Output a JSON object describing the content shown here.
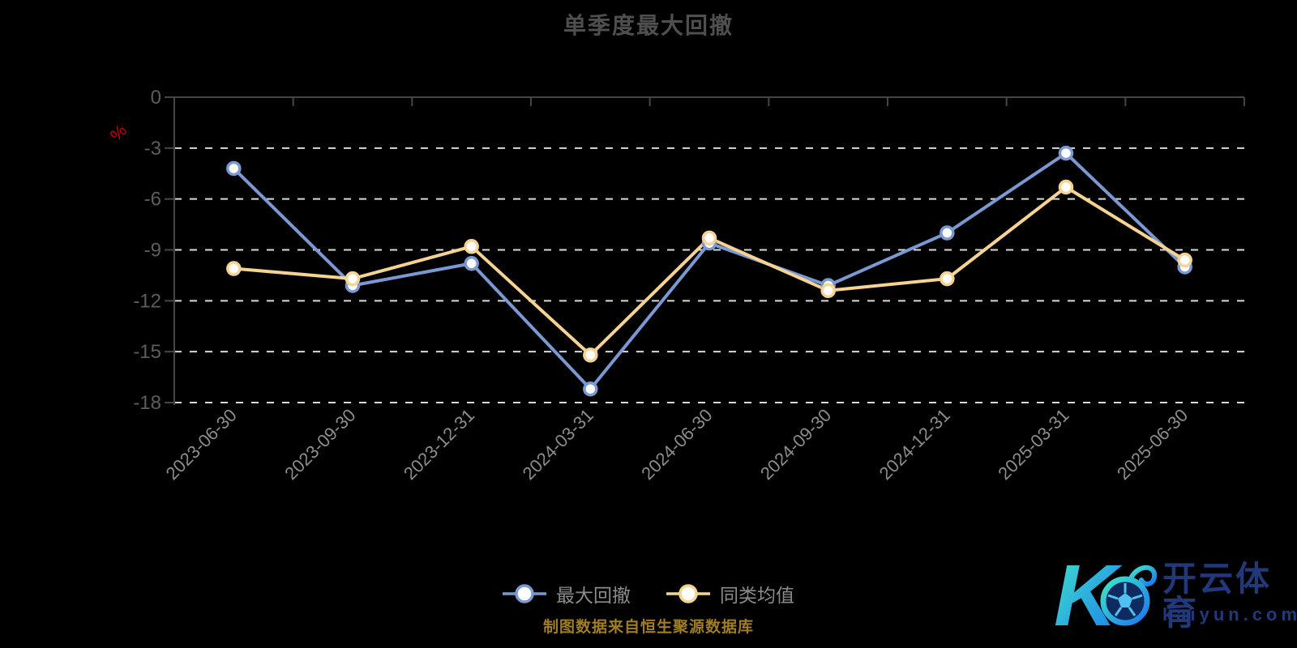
{
  "title": "单季度最大回撤",
  "source_note": "制图数据来自恒生聚源数据库",
  "y_axis": {
    "unit_label": "%",
    "ticks": [
      0,
      -3,
      -6,
      -9,
      -12,
      -15,
      -18
    ],
    "min": -18,
    "max": 0
  },
  "legend": [
    {
      "name": "最大回撤",
      "color": "#7a98d2"
    },
    {
      "name": "同类均值",
      "color": "#f7d393"
    }
  ],
  "chart_data": {
    "type": "line",
    "title": "单季度最大回撤",
    "categories": [
      "2023-06-30",
      "2023-09-30",
      "2023-12-31",
      "2024-03-31",
      "2024-06-30",
      "2024-09-30",
      "2024-12-31",
      "2025-03-31",
      "2025-06-30"
    ],
    "series": [
      {
        "name": "最大回撤",
        "color": "#7a98d2",
        "values": [
          -4.2,
          -11.1,
          -9.8,
          -17.2,
          -8.6,
          -11.1,
          -8.0,
          -3.3,
          -10.0
        ]
      },
      {
        "name": "同类均值",
        "color": "#f7d393",
        "values": [
          -10.1,
          -10.7,
          -8.8,
          -15.2,
          -8.3,
          -11.4,
          -10.7,
          -5.3,
          -9.6
        ]
      }
    ],
    "xlabel": "",
    "ylabel": "%",
    "ylim": [
      -18,
      0
    ],
    "grid": "horizontal-dashed-white",
    "legend_position": "bottom",
    "marker": "circle-white-fill"
  },
  "watermark": {
    "brand_cn": "开云体育",
    "brand_url": "kaiyun.com"
  },
  "colors": {
    "background": "#000000",
    "grid": "#d9d9d9",
    "axis": "#464646",
    "y_label": "#5d5d5d",
    "x_label": "#8c8c8c",
    "unit": "#c40000",
    "title": "#4f4f4f",
    "legend_text": "#8b8b8b",
    "source_text": "#a07d23",
    "logo_gradient": [
      "#41e5c9",
      "#1a78f0"
    ],
    "logo_text": "#21397a"
  }
}
